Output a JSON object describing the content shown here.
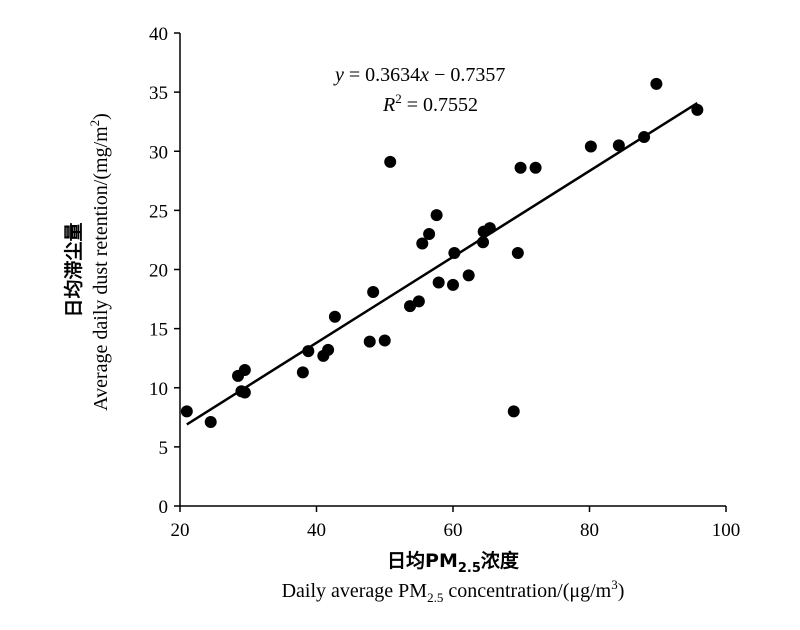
{
  "chart_data": {
    "type": "scatter",
    "x_range": [
      20,
      100
    ],
    "y_range": [
      0,
      40
    ],
    "x_ticks": [
      "20",
      "40",
      "60",
      "80",
      "100"
    ],
    "y_ticks": [
      "0",
      "5",
      "10",
      "15",
      "20",
      "25",
      "30",
      "35",
      "40"
    ],
    "xlabel_cn_prefix": "日均PM",
    "xlabel_cn_sub": "2.5",
    "xlabel_cn_suffix": "浓度",
    "xlabel_en_prefix": "Daily average PM",
    "xlabel_en_sub": "2.5",
    "xlabel_en_mid": " concentration/(μg/m",
    "xlabel_en_sup": "3",
    "xlabel_en_end": ")",
    "ylabel_cn": "日均滞尘量",
    "ylabel_en_prefix": "Average daily dust retention/(mg/m",
    "ylabel_en_sup": "2",
    "ylabel_en_end": ")",
    "equation": {
      "y_var": "y",
      "eq_mid": " = 0.3634",
      "x_var": "x",
      "eq_end": " − 0.7357",
      "r_var": "R",
      "r_sup": "2",
      "r_val": " = 0.7552"
    },
    "trendline": {
      "slope": 0.3634,
      "intercept": -0.7357,
      "x_start": 21,
      "x_end": 95.8
    },
    "grid": false,
    "points": [
      {
        "x": 21,
        "y": 8.0
      },
      {
        "x": 24.5,
        "y": 7.1
      },
      {
        "x": 28.5,
        "y": 11.0
      },
      {
        "x": 29,
        "y": 9.7
      },
      {
        "x": 29.5,
        "y": 9.6
      },
      {
        "x": 29.5,
        "y": 11.5
      },
      {
        "x": 38,
        "y": 11.3
      },
      {
        "x": 38.8,
        "y": 13.1
      },
      {
        "x": 41,
        "y": 12.7
      },
      {
        "x": 41.7,
        "y": 13.2
      },
      {
        "x": 42.7,
        "y": 16.0
      },
      {
        "x": 47.8,
        "y": 13.9
      },
      {
        "x": 48.3,
        "y": 18.1
      },
      {
        "x": 50,
        "y": 14.0
      },
      {
        "x": 50.8,
        "y": 29.1
      },
      {
        "x": 53.7,
        "y": 16.9
      },
      {
        "x": 55,
        "y": 17.3
      },
      {
        "x": 55.5,
        "y": 22.2
      },
      {
        "x": 56.5,
        "y": 23.0
      },
      {
        "x": 57.6,
        "y": 24.6
      },
      {
        "x": 57.9,
        "y": 18.9
      },
      {
        "x": 60,
        "y": 18.7
      },
      {
        "x": 60.2,
        "y": 21.4
      },
      {
        "x": 62.3,
        "y": 19.5
      },
      {
        "x": 64.4,
        "y": 22.3
      },
      {
        "x": 64.5,
        "y": 23.2
      },
      {
        "x": 65.4,
        "y": 23.5
      },
      {
        "x": 68.9,
        "y": 8.0
      },
      {
        "x": 69.5,
        "y": 21.4
      },
      {
        "x": 69.9,
        "y": 28.6
      },
      {
        "x": 72.1,
        "y": 28.6
      },
      {
        "x": 80.2,
        "y": 30.4
      },
      {
        "x": 84.3,
        "y": 30.5
      },
      {
        "x": 88,
        "y": 31.2
      },
      {
        "x": 89.8,
        "y": 35.7
      },
      {
        "x": 95.8,
        "y": 33.5
      }
    ]
  }
}
